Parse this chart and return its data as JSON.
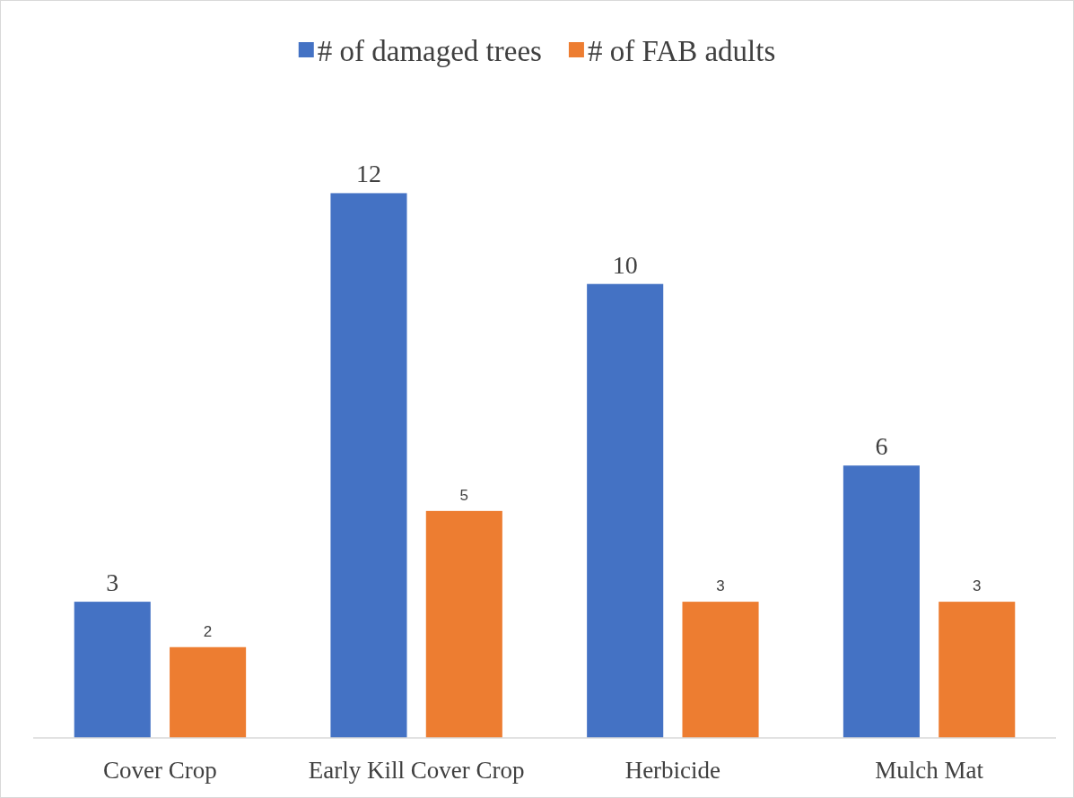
{
  "chart_data": {
    "type": "bar",
    "categories": [
      "Cover Crop",
      "Early Kill Cover Crop",
      "Herbicide",
      "Mulch Mat"
    ],
    "series": [
      {
        "name": "# of damaged trees",
        "color": "#4472c4",
        "values": [
          3,
          12,
          10,
          6
        ]
      },
      {
        "name": "# of FAB adults",
        "color": "#ed7d31",
        "values": [
          2,
          5,
          3,
          3
        ]
      }
    ],
    "data_labels": true,
    "legend": "top",
    "grid": false
  }
}
